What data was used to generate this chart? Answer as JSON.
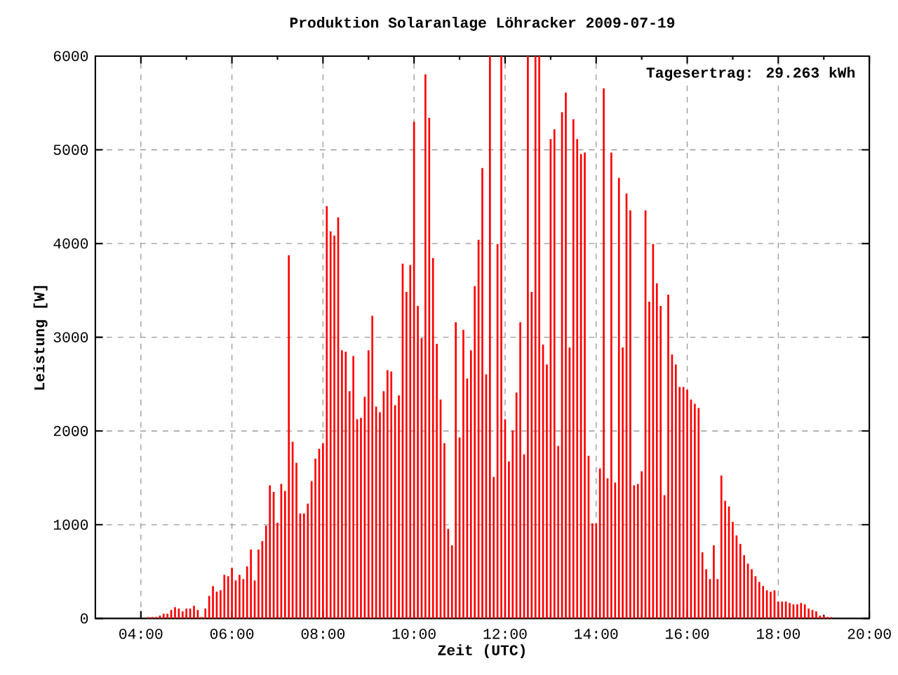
{
  "chart_data": {
    "type": "bar",
    "title": "Produktion Solaranlage Löhracker 2009-07-19",
    "xlabel": "Zeit (UTC)",
    "ylabel": "Leistung [W]",
    "annotations": [
      "Tagesertrag: 29.263 kWh"
    ],
    "color": "#ff0000",
    "grid": true,
    "xlim": [
      3,
      20
    ],
    "ylim": [
      0,
      6000
    ],
    "yticks": [
      0,
      1000,
      2000,
      3000,
      4000,
      5000,
      6000
    ],
    "xticks": [
      {
        "value": 4,
        "label": "04:00"
      },
      {
        "value": 5,
        "label": null
      },
      {
        "value": 6,
        "label": "06:00"
      },
      {
        "value": 7,
        "label": null
      },
      {
        "value": 8,
        "label": "08:00"
      },
      {
        "value": 9,
        "label": null
      },
      {
        "value": 10,
        "label": "10:00"
      },
      {
        "value": 11,
        "label": null
      },
      {
        "value": 12,
        "label": "12:00"
      },
      {
        "value": 13,
        "label": null
      },
      {
        "value": 14,
        "label": "14:00"
      },
      {
        "value": 15,
        "label": null
      },
      {
        "value": 16,
        "label": "16:00"
      },
      {
        "value": 17,
        "label": null
      },
      {
        "value": 18,
        "label": "18:00"
      },
      {
        "value": 19,
        "label": null
      },
      {
        "value": 20,
        "label": "20:00"
      }
    ],
    "x": [
      4.1667,
      4.25,
      4.3333,
      4.4167,
      4.5,
      4.5833,
      4.6667,
      4.75,
      4.8333,
      4.9167,
      5,
      5.0833,
      5.1667,
      5.25,
      5.3333,
      5.4167,
      5.5,
      5.5833,
      5.6667,
      5.75,
      5.8333,
      5.9167,
      6,
      6.0833,
      6.1667,
      6.25,
      6.3333,
      6.4167,
      6.5,
      6.5833,
      6.6667,
      6.75,
      6.8333,
      6.9167,
      7,
      7.0833,
      7.1667,
      7.25,
      7.3333,
      7.4167,
      7.5,
      7.5833,
      7.6667,
      7.75,
      7.8333,
      7.9167,
      8,
      8.0833,
      8.1667,
      8.25,
      8.3333,
      8.4167,
      8.5,
      8.5833,
      8.6667,
      8.75,
      8.8333,
      8.9167,
      9,
      9.0833,
      9.1667,
      9.25,
      9.3333,
      9.4167,
      9.5,
      9.5833,
      9.6667,
      9.75,
      9.8333,
      9.9167,
      10,
      10.0833,
      10.1667,
      10.25,
      10.3333,
      10.4167,
      10.5,
      10.5833,
      10.6667,
      10.75,
      10.8333,
      10.9167,
      11,
      11.0833,
      11.1667,
      11.25,
      11.3333,
      11.4167,
      11.5,
      11.5833,
      11.6667,
      11.75,
      11.8333,
      11.9167,
      12,
      12.0833,
      12.1667,
      12.25,
      12.3333,
      12.4167,
      12.5,
      12.5833,
      12.6667,
      12.75,
      12.8333,
      12.9167,
      13,
      13.0833,
      13.1667,
      13.25,
      13.3333,
      13.4167,
      13.5,
      13.5833,
      13.6667,
      13.75,
      13.8333,
      13.9167,
      14,
      14.0833,
      14.1667,
      14.25,
      14.3333,
      14.4167,
      14.5,
      14.5833,
      14.6667,
      14.75,
      14.8333,
      14.9167,
      15,
      15.0833,
      15.1667,
      15.25,
      15.3333,
      15.4167,
      15.5,
      15.5833,
      15.6667,
      15.75,
      15.8333,
      15.9167,
      16,
      16.0833,
      16.1667,
      16.25,
      16.3333,
      16.4167,
      16.5,
      16.5833,
      16.6667,
      16.75,
      16.8333,
      16.9167,
      17,
      17.0833,
      17.1667,
      17.25,
      17.3333,
      17.4167,
      17.5,
      17.5833,
      17.6667,
      17.75,
      17.8333,
      17.9167,
      18,
      18.0833,
      18.1667,
      18.25,
      18.3333,
      18.4167,
      18.5,
      18.5833,
      18.6667,
      18.75,
      18.8333,
      18.9167,
      19,
      19.0833,
      19.1667
    ],
    "values": [
      15,
      15,
      15,
      30,
      50,
      50,
      90,
      120,
      105,
      75,
      105,
      105,
      135,
      90,
      15,
      105,
      240,
      345,
      285,
      300,
      465,
      450,
      540,
      405,
      465,
      420,
      555,
      735,
      405,
      735,
      825,
      990,
      1420,
      1350,
      1020,
      1435,
      1360,
      3875,
      1885,
      1660,
      1120,
      1120,
      1225,
      1465,
      1705,
      1810,
      1870,
      4400,
      4130,
      4085,
      4280,
      2860,
      2845,
      2425,
      2800,
      2125,
      2140,
      2365,
      2860,
      3230,
      2260,
      2200,
      2425,
      2650,
      2635,
      2275,
      2380,
      3785,
      3485,
      3770,
      5300,
      3335,
      2990,
      5805,
      5340,
      3845,
      2930,
      2335,
      1870,
      955,
      780,
      3160,
      1930,
      3080,
      2560,
      2860,
      3545,
      4040,
      4805,
      2605,
      6000,
      1510,
      3995,
      6000,
      2125,
      1675,
      2005,
      2410,
      3160,
      1750,
      6000,
      3485,
      6000,
      6000,
      2920,
      2710,
      5115,
      5220,
      1840,
      5400,
      5610,
      2890,
      5325,
      5115,
      4955,
      4970,
      1735,
      1015,
      1015,
      1600,
      5655,
      1495,
      4970,
      1450,
      4700,
      2890,
      4535,
      4355,
      1420,
      1435,
      1570,
      4355,
      3380,
      3995,
      3575,
      3335,
      1315,
      3455,
      2815,
      2710,
      2470,
      2470,
      2440,
      2335,
      2290,
      2245,
      705,
      525,
      420,
      780,
      420,
      1525,
      1255,
      1195,
      1030,
      885,
      795,
      675,
      585,
      525,
      450,
      390,
      345,
      300,
      285,
      300,
      180,
      180,
      180,
      165,
      150,
      150,
      165,
      150,
      105,
      90,
      75,
      30,
      30,
      15,
      15
    ]
  }
}
